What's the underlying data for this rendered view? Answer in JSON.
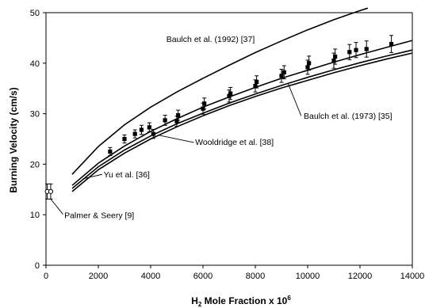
{
  "chart_data": {
    "type": "line",
    "xlabel": "H",
    "xlabel_sub": "2",
    "xlabel_rest": " Mole Fraction x 10",
    "xlabel_sup": "6",
    "ylabel": "Burning Velocity (cm/s)",
    "xlim": [
      0,
      14000
    ],
    "ylim": [
      0,
      50
    ],
    "xticks": [
      0,
      2000,
      4000,
      6000,
      8000,
      10000,
      12000,
      14000
    ],
    "yticks": [
      0,
      10,
      20,
      30,
      40,
      50
    ],
    "grid": false,
    "series": [
      {
        "name": "Baulch et al. (1992) [37]",
        "kind": "line",
        "x": [
          1000,
          2000,
          3000,
          4000,
          5000,
          6000,
          7000,
          8000,
          9000,
          10000,
          11000,
          12000,
          12300
        ],
        "y": [
          18.0,
          23.5,
          27.8,
          31.3,
          34.3,
          37.0,
          39.6,
          42.1,
          44.4,
          46.6,
          48.6,
          50.4,
          50.9
        ]
      },
      {
        "name": "Baulch et al. (1973) [35]",
        "kind": "line",
        "x": [
          1000,
          2000,
          3000,
          4000,
          5000,
          6000,
          7000,
          8000,
          9000,
          10000,
          11000,
          12000,
          13000,
          14000
        ],
        "y": [
          15.8,
          20.2,
          23.6,
          26.5,
          29.0,
          31.3,
          33.3,
          35.2,
          37.0,
          38.6,
          40.2,
          41.7,
          43.1,
          44.5
        ]
      },
      {
        "name": "Wooldridge et al. [38]",
        "kind": "line",
        "x": [
          1000,
          2000,
          3000,
          4000,
          5000,
          6000,
          7000,
          8000,
          9000,
          10000,
          11000,
          12000,
          13000,
          14000
        ],
        "y": [
          15.2,
          19.5,
          22.8,
          25.6,
          28.0,
          30.1,
          32.1,
          33.9,
          35.6,
          37.2,
          38.7,
          40.1,
          41.4,
          42.6
        ]
      },
      {
        "name": "Yu et al. [36]",
        "kind": "line",
        "x": [
          1000,
          2000,
          3000,
          4000,
          5000,
          6000,
          7000,
          8000,
          9000,
          10000,
          11000,
          12000,
          13000,
          14000
        ],
        "y": [
          14.6,
          18.9,
          22.2,
          25.0,
          27.4,
          29.6,
          31.6,
          33.4,
          35.1,
          36.6,
          38.1,
          39.5,
          40.8,
          42.0
        ]
      },
      {
        "name": "Palmer & Seery [9]",
        "kind": "points",
        "marker": "open-circle",
        "x": [
          50,
          180
        ],
        "y": [
          14.6,
          14.6
        ],
        "err": [
          1.5,
          1.5
        ]
      },
      {
        "name": "",
        "kind": "points",
        "marker": "filled-square",
        "x": [
          2450,
          3000,
          3400,
          3650,
          3950,
          4100,
          4550,
          5000,
          5050,
          6000,
          6050,
          7000,
          7050,
          8000,
          8050,
          9000,
          9100,
          10000,
          10050,
          11000,
          11050,
          11600,
          11850,
          12250,
          13200
        ],
        "y": [
          22.5,
          25.0,
          26.0,
          26.8,
          27.3,
          26.0,
          28.7,
          28.5,
          29.7,
          31.0,
          32.0,
          33.5,
          34.0,
          35.5,
          36.3,
          37.5,
          38.2,
          39.2,
          40.0,
          40.5,
          41.3,
          42.2,
          42.6,
          42.8,
          43.8
        ],
        "err": [
          0.8,
          0.8,
          0.8,
          0.9,
          0.9,
          0.9,
          1.0,
          1.0,
          1.0,
          1.1,
          1.1,
          1.2,
          1.2,
          1.2,
          1.2,
          1.3,
          1.3,
          1.4,
          1.4,
          1.5,
          1.5,
          1.5,
          1.5,
          1.6,
          1.7
        ]
      }
    ],
    "annotations": [
      {
        "text": "Baulch et al. (1992) [37]",
        "x": 4600,
        "y": 44.2
      },
      {
        "text": "Baulch et al. (1973) [35]",
        "x": 9850,
        "y": 29.0
      },
      {
        "text": "Wooldridge et al. [38]",
        "x": 5700,
        "y": 23.8
      },
      {
        "text": "Yu et al. [36]",
        "x": 2200,
        "y": 17.4
      },
      {
        "text": "Palmer & Seery [9]",
        "x": 700,
        "y": 9.3
      }
    ]
  }
}
